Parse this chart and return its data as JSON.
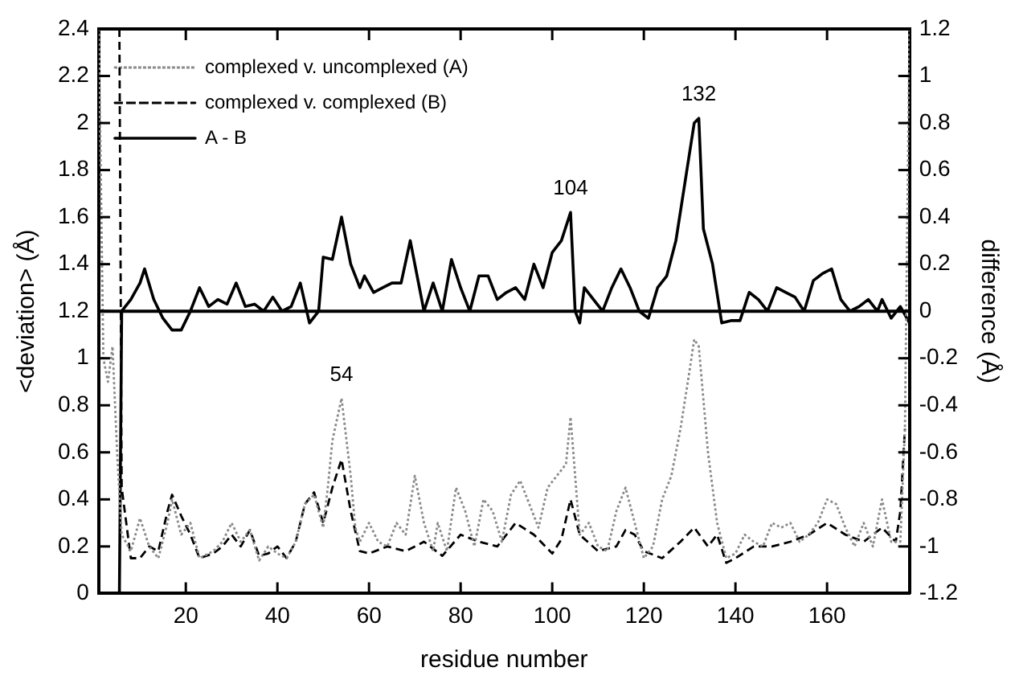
{
  "chart_data": {
    "type": "line",
    "xlabel": "residue number",
    "ylabel": "<deviation> (Å)",
    "y2label": "difference (Å)",
    "xlim": [
      1,
      178
    ],
    "xticks": [
      20,
      40,
      60,
      80,
      100,
      120,
      140,
      160
    ],
    "ylim": [
      0,
      2.4
    ],
    "yticks": [
      0,
      0.2,
      0.4,
      0.6,
      0.8,
      1,
      1.2,
      1.4,
      1.6,
      1.8,
      2,
      2.2,
      2.4
    ],
    "y2lim": [
      -1.2,
      1.2
    ],
    "y2ticks": [
      -1.2,
      -1,
      -0.8,
      -0.6,
      -0.4,
      -0.2,
      0,
      0.2,
      0.4,
      0.6,
      0.8,
      1,
      1.2
    ],
    "grid": false,
    "legend": "top left",
    "series": [
      {
        "name": "complexed v. uncomplexed (A)",
        "color": "#8a8a8a",
        "line_style": "dotted",
        "x": [
          1,
          2,
          3,
          4,
          5,
          6,
          8,
          10,
          12,
          14,
          16,
          17,
          19,
          21,
          23,
          26,
          28,
          30,
          32,
          34,
          36,
          38,
          40,
          42,
          44,
          46,
          48,
          50,
          51,
          52,
          54,
          56,
          57,
          58,
          60,
          62,
          64,
          66,
          68,
          70,
          72,
          74,
          75,
          77,
          79,
          81,
          83,
          85,
          87,
          89,
          91,
          93,
          95,
          97,
          99,
          101,
          103,
          104,
          106,
          108,
          110,
          112,
          114,
          116,
          118,
          120,
          122,
          124,
          126,
          128,
          130,
          131,
          132,
          134,
          136,
          138,
          140,
          142,
          144,
          146,
          148,
          150,
          152,
          154,
          156,
          158,
          160,
          162,
          164,
          166,
          168,
          170,
          172,
          174,
          176,
          177,
          178
        ],
        "values": [
          2.4,
          1.0,
          0.9,
          1.05,
          0.6,
          0.25,
          0.18,
          0.32,
          0.2,
          0.15,
          0.3,
          0.4,
          0.25,
          0.3,
          0.15,
          0.18,
          0.22,
          0.3,
          0.22,
          0.27,
          0.14,
          0.2,
          0.17,
          0.15,
          0.22,
          0.38,
          0.42,
          0.28,
          0.45,
          0.65,
          0.83,
          0.5,
          0.28,
          0.22,
          0.3,
          0.22,
          0.2,
          0.3,
          0.25,
          0.5,
          0.3,
          0.18,
          0.3,
          0.18,
          0.45,
          0.35,
          0.2,
          0.4,
          0.35,
          0.22,
          0.42,
          0.48,
          0.38,
          0.28,
          0.45,
          0.5,
          0.55,
          0.75,
          0.25,
          0.3,
          0.2,
          0.18,
          0.35,
          0.45,
          0.3,
          0.15,
          0.2,
          0.4,
          0.5,
          0.7,
          0.95,
          1.08,
          1.05,
          0.6,
          0.3,
          0.15,
          0.17,
          0.25,
          0.22,
          0.2,
          0.3,
          0.28,
          0.3,
          0.22,
          0.25,
          0.3,
          0.4,
          0.38,
          0.28,
          0.2,
          0.3,
          0.2,
          0.4,
          0.22,
          0.22,
          0.7,
          2.4
        ]
      },
      {
        "name": "complexed v. complexed (B)",
        "color": "#000000",
        "line_style": "dashed",
        "x": [
          5.5,
          6,
          8,
          10,
          12,
          14,
          16,
          17,
          19,
          21,
          23,
          26,
          28,
          30,
          32,
          34,
          36,
          38,
          40,
          42,
          44,
          46,
          48,
          50,
          52,
          54,
          56,
          58,
          60,
          64,
          68,
          72,
          76,
          80,
          84,
          88,
          92,
          96,
          100,
          102,
          104,
          106,
          110,
          114,
          116,
          118,
          120,
          124,
          128,
          131,
          134,
          136,
          138,
          140,
          144,
          148,
          152,
          156,
          160,
          164,
          168,
          172,
          175,
          176,
          177
        ],
        "values": [
          2.4,
          0.45,
          0.15,
          0.15,
          0.2,
          0.18,
          0.35,
          0.42,
          0.33,
          0.25,
          0.15,
          0.17,
          0.2,
          0.25,
          0.2,
          0.27,
          0.16,
          0.17,
          0.2,
          0.15,
          0.22,
          0.38,
          0.43,
          0.3,
          0.45,
          0.57,
          0.35,
          0.18,
          0.17,
          0.2,
          0.18,
          0.22,
          0.16,
          0.25,
          0.22,
          0.2,
          0.3,
          0.25,
          0.17,
          0.23,
          0.4,
          0.25,
          0.18,
          0.2,
          0.27,
          0.25,
          0.18,
          0.15,
          0.22,
          0.28,
          0.2,
          0.25,
          0.13,
          0.15,
          0.2,
          0.2,
          0.22,
          0.25,
          0.3,
          0.25,
          0.22,
          0.28,
          0.22,
          0.35,
          0.7
        ]
      },
      {
        "name": "A - B",
        "color": "#000000",
        "line_style": "solid",
        "axis": "y2",
        "x": [
          5.5,
          6,
          8,
          10,
          11,
          13,
          15,
          17,
          19,
          21,
          23,
          25,
          27,
          29,
          31,
          33,
          35,
          37,
          39,
          41,
          43,
          45,
          47,
          49,
          50,
          52,
          54,
          56,
          58,
          59,
          61,
          63,
          65,
          67,
          69,
          71,
          72,
          74,
          76,
          78,
          80,
          82,
          84,
          86,
          88,
          90,
          92,
          94,
          96,
          98,
          100,
          102,
          104,
          105,
          106,
          107,
          109,
          111,
          113,
          115,
          117,
          119,
          121,
          123,
          125,
          127,
          129,
          131,
          132,
          133,
          135,
          137,
          139,
          141,
          143,
          145,
          147,
          149,
          151,
          153,
          155,
          157,
          159,
          161,
          163,
          165,
          167,
          169,
          171,
          172,
          174,
          176,
          178
        ],
        "values": [
          -1.2,
          0,
          0.05,
          0.12,
          0.18,
          0.05,
          -0.03,
          -0.08,
          -0.08,
          0,
          0.1,
          0.02,
          0.05,
          0.03,
          0.12,
          0.02,
          0.03,
          0,
          0.06,
          0,
          0.02,
          0.12,
          -0.05,
          0,
          0.23,
          0.22,
          0.4,
          0.2,
          0.1,
          0.15,
          0.08,
          0.1,
          0.12,
          0.12,
          0.3,
          0.1,
          0,
          0.12,
          0,
          0.22,
          0.1,
          0,
          0.15,
          0.15,
          0.05,
          0.08,
          0.1,
          0.05,
          0.2,
          0.1,
          0.25,
          0.3,
          0.42,
          0,
          -0.05,
          0.1,
          0.05,
          0,
          0.1,
          0.18,
          0.1,
          0,
          -0.03,
          0.1,
          0.15,
          0.3,
          0.55,
          0.8,
          0.82,
          0.35,
          0.2,
          -0.05,
          -0.04,
          -0.04,
          0.08,
          0.05,
          0,
          0.1,
          0.08,
          0.06,
          0,
          0.13,
          0.16,
          0.18,
          0.05,
          0,
          0.02,
          0.05,
          0,
          0.05,
          -0.03,
          0.02,
          -0.05
        ]
      }
    ],
    "ref_lines": [
      {
        "axis": "y2",
        "value": 0,
        "color": "#000000"
      }
    ],
    "annotations": [
      {
        "text": "54",
        "x": 54,
        "y": 0.83
      },
      {
        "text": "104",
        "x": 104,
        "y": 1.62
      },
      {
        "text": "132",
        "x": 132,
        "y": 2.02
      }
    ]
  }
}
